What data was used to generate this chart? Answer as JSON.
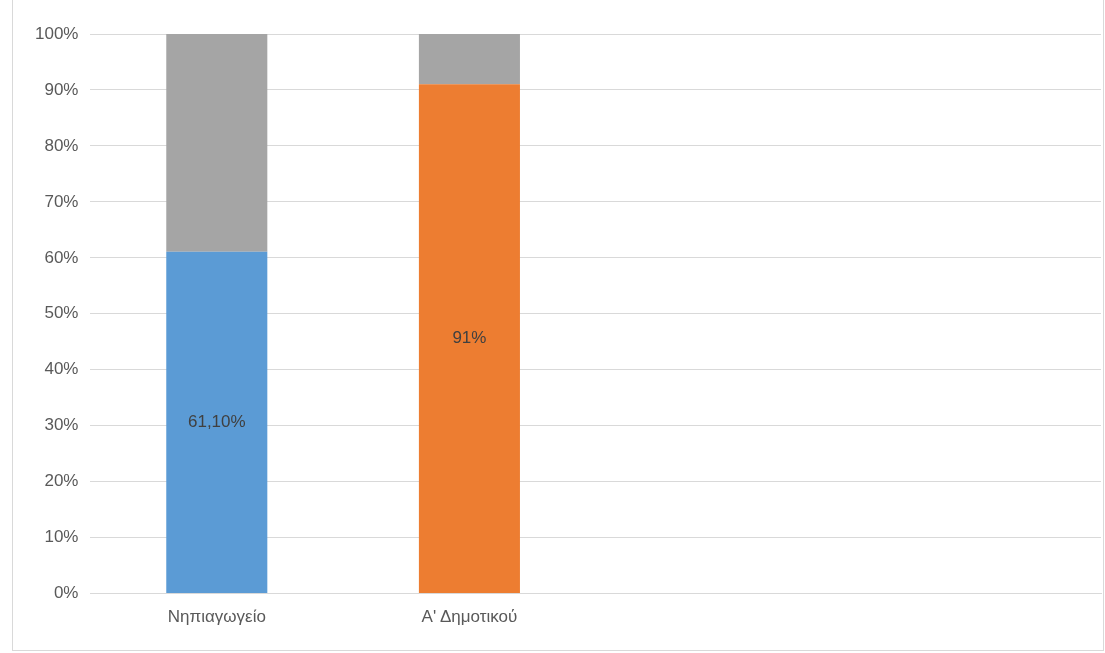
{
  "chart_data": {
    "type": "bar",
    "stacked": true,
    "categories": [
      "Νηπιαγωγείο",
      "Α' Δημοτικού",
      null,
      null
    ],
    "series": [
      {
        "colors": [
          "#5b9bd5",
          "#ed7d31",
          null,
          null
        ],
        "values": [
          61.1,
          91,
          null,
          null
        ],
        "value_labels": [
          "61,10%",
          "91%",
          null,
          null
        ]
      },
      {
        "color": "#a5a5a5",
        "values": [
          38.9,
          9,
          null,
          null
        ]
      }
    ],
    "ylim": [
      0,
      100
    ],
    "yticks": [
      {
        "value": 0,
        "label": "0%"
      },
      {
        "value": 10,
        "label": "10%"
      },
      {
        "value": 20,
        "label": "20%"
      },
      {
        "value": 30,
        "label": "30%"
      },
      {
        "value": 40,
        "label": "40%"
      },
      {
        "value": 50,
        "label": "50%"
      },
      {
        "value": 60,
        "label": "60%"
      },
      {
        "value": 70,
        "label": "70%"
      },
      {
        "value": 80,
        "label": "80%"
      },
      {
        "value": 90,
        "label": "90%"
      },
      {
        "value": 100,
        "label": "100%"
      }
    ],
    "grid": "y",
    "legend": false
  }
}
